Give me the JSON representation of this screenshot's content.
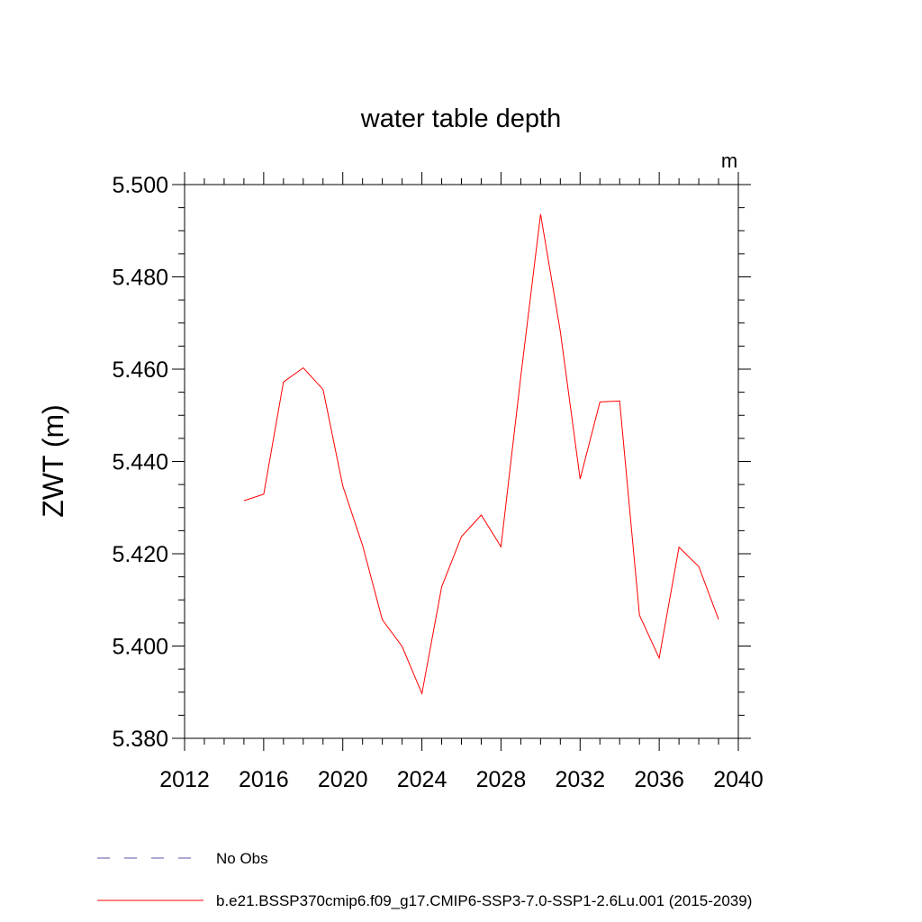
{
  "chart_data": {
    "type": "line",
    "title": "water table depth",
    "units_label": "m",
    "ylabel": "ZWT  (m)",
    "xlabel": "",
    "xlim": [
      2012,
      2040
    ],
    "ylim": [
      5.38,
      5.5
    ],
    "x_ticks": [
      "2012",
      "2016",
      "2020",
      "2024",
      "2028",
      "2032",
      "2036",
      "2040"
    ],
    "y_ticks": [
      "5.380",
      "5.400",
      "5.420",
      "5.440",
      "5.460",
      "5.480",
      "5.500"
    ],
    "grid": false,
    "legend_position": "bottom-left",
    "series": [
      {
        "name": "b.e21.BSSP370cmip6.f09_g17.CMIP6-SSP3-7.0-SSP1-2.6Lu.001 (2015-2039)",
        "color": "#ff0000",
        "style": "solid",
        "x": [
          2015,
          2016,
          2017,
          2018,
          2019,
          2020,
          2021,
          2022,
          2023,
          2024,
          2025,
          2026,
          2027,
          2028,
          2029,
          2030,
          2031,
          2032,
          2033,
          2034,
          2035,
          2036,
          2037,
          2038,
          2039
        ],
        "y": [
          5.4315,
          5.4329,
          5.4572,
          5.4603,
          5.4556,
          5.4347,
          5.4218,
          5.4057,
          5.3999,
          5.3897,
          5.4128,
          5.4237,
          5.4284,
          5.4215,
          5.4584,
          5.4936,
          5.4682,
          5.4362,
          5.4529,
          5.4531,
          5.4067,
          5.3974,
          5.4214,
          5.4172,
          5.4058
        ]
      }
    ],
    "legend": [
      {
        "label": "No Obs",
        "color": "#5555aa",
        "style": "dashed"
      },
      {
        "label": "b.e21.BSSP370cmip6.f09_g17.CMIP6-SSP3-7.0-SSP1-2.6Lu.001 (2015-2039)",
        "color": "#ff0000",
        "style": "solid"
      }
    ]
  }
}
